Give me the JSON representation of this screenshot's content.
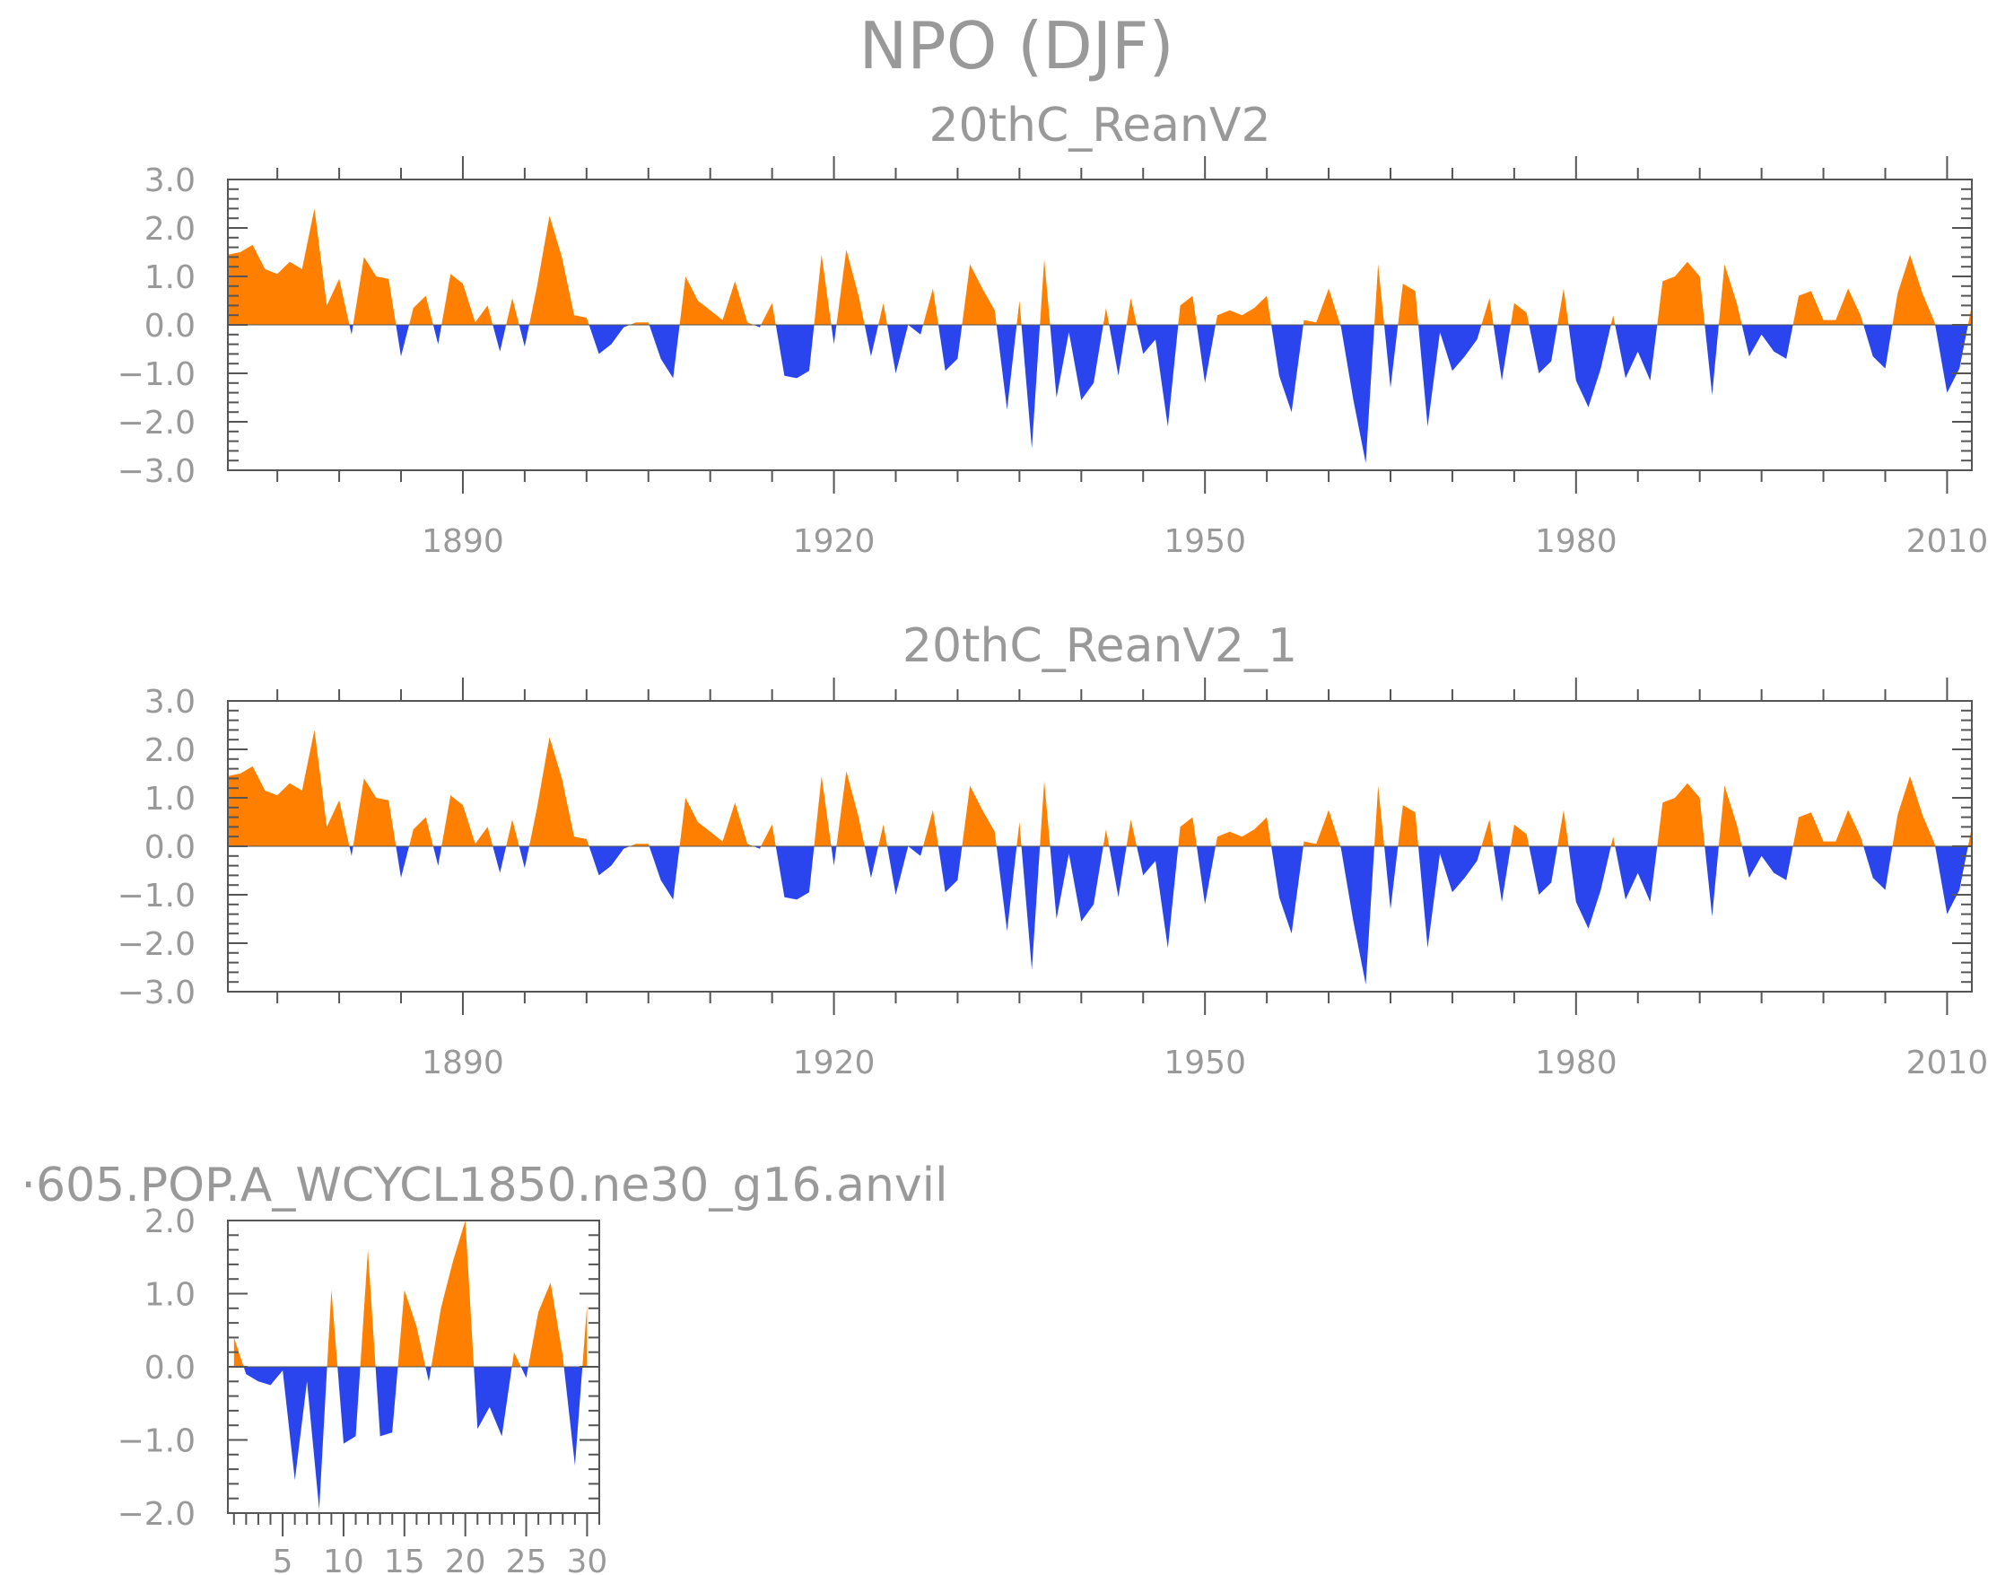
{
  "main_title": "NPO (DJF)",
  "colors": {
    "positive": "#ff8000",
    "negative": "#2a44ee",
    "text": "#999999",
    "axis": "#555555"
  },
  "chart_data": [
    {
      "type": "area",
      "title": "20thC_ReanV2",
      "xlim": [
        1871,
        2012
      ],
      "ylim": [
        -3.0,
        3.0
      ],
      "yticks": [
        3.0,
        2.0,
        1.0,
        0.0,
        -1.0,
        -2.0,
        -3.0
      ],
      "ytick_labels": [
        "3.0",
        "2.0",
        "1.0",
        "0.0",
        "−1.0",
        "−2.0",
        "−3.0"
      ],
      "xticks": [
        1890,
        1920,
        1950,
        1980,
        2010
      ],
      "xtick_labels": [
        "1890",
        "1920",
        "1950",
        "1980",
        "2010"
      ],
      "x_start": 1871,
      "values": [
        1.45,
        1.5,
        1.65,
        1.15,
        1.05,
        1.3,
        1.15,
        2.4,
        0.4,
        0.95,
        -0.2,
        1.4,
        1.0,
        0.95,
        -0.65,
        0.35,
        0.6,
        -0.4,
        1.05,
        0.85,
        0.05,
        0.4,
        -0.55,
        0.55,
        -0.45,
        0.8,
        2.25,
        1.4,
        0.2,
        0.15,
        -0.6,
        -0.4,
        -0.05,
        0.05,
        0.05,
        -0.7,
        -1.1,
        1.0,
        0.5,
        0.3,
        0.1,
        0.9,
        0.05,
        -0.05,
        0.45,
        -1.05,
        -1.1,
        -0.95,
        1.45,
        -0.4,
        1.55,
        0.6,
        -0.65,
        0.45,
        -1.0,
        0.0,
        -0.2,
        0.75,
        -0.95,
        -0.7,
        1.25,
        0.75,
        0.3,
        -1.75,
        0.5,
        -2.55,
        1.35,
        -1.5,
        -0.15,
        -1.55,
        -1.2,
        0.35,
        -1.05,
        0.55,
        -0.6,
        -0.3,
        -2.1,
        0.4,
        0.6,
        -1.2,
        0.2,
        0.3,
        0.2,
        0.35,
        0.6,
        -1.05,
        -1.8,
        0.1,
        0.05,
        0.75,
        -0.05,
        -1.55,
        -2.85,
        1.25,
        -1.3,
        0.85,
        0.7,
        -2.1,
        -0.15,
        -0.95,
        -0.65,
        -0.3,
        0.55,
        -1.15,
        0.45,
        0.25,
        -1.0,
        -0.75,
        0.75,
        -1.15,
        -1.7,
        -0.9,
        0.2,
        -1.1,
        -0.55,
        -1.15,
        0.9,
        1.0,
        1.3,
        1.0,
        -1.45,
        1.25,
        0.45,
        -0.65,
        -0.2,
        -0.55,
        -0.7,
        0.6,
        0.7,
        0.1,
        0.1,
        0.75,
        0.2,
        -0.65,
        -0.9,
        0.65,
        1.45,
        0.65,
        0.05,
        -1.4,
        -0.9,
        0.4
      ]
    },
    {
      "type": "area",
      "title": "20thC_ReanV2_1",
      "xlim": [
        1871,
        2012
      ],
      "ylim": [
        -3.0,
        3.0
      ],
      "yticks": [
        3.0,
        2.0,
        1.0,
        0.0,
        -1.0,
        -2.0,
        -3.0
      ],
      "ytick_labels": [
        "3.0",
        "2.0",
        "1.0",
        "0.0",
        "−1.0",
        "−2.0",
        "−3.0"
      ],
      "xticks": [
        1890,
        1920,
        1950,
        1980,
        2010
      ],
      "xtick_labels": [
        "1890",
        "1920",
        "1950",
        "1980",
        "2010"
      ],
      "x_start": 1871,
      "values": [
        1.45,
        1.5,
        1.65,
        1.15,
        1.05,
        1.3,
        1.15,
        2.4,
        0.4,
        0.95,
        -0.2,
        1.4,
        1.0,
        0.95,
        -0.65,
        0.35,
        0.6,
        -0.4,
        1.05,
        0.85,
        0.05,
        0.4,
        -0.55,
        0.55,
        -0.45,
        0.8,
        2.25,
        1.4,
        0.2,
        0.15,
        -0.6,
        -0.4,
        -0.05,
        0.05,
        0.05,
        -0.7,
        -1.1,
        1.0,
        0.5,
        0.3,
        0.1,
        0.9,
        0.05,
        -0.05,
        0.45,
        -1.05,
        -1.1,
        -0.95,
        1.45,
        -0.4,
        1.55,
        0.6,
        -0.65,
        0.45,
        -1.0,
        0.0,
        -0.2,
        0.75,
        -0.95,
        -0.7,
        1.25,
        0.75,
        0.3,
        -1.75,
        0.5,
        -2.55,
        1.35,
        -1.5,
        -0.15,
        -1.55,
        -1.2,
        0.35,
        -1.05,
        0.55,
        -0.6,
        -0.3,
        -2.1,
        0.4,
        0.6,
        -1.2,
        0.2,
        0.3,
        0.2,
        0.35,
        0.6,
        -1.05,
        -1.8,
        0.1,
        0.05,
        0.75,
        -0.05,
        -1.55,
        -2.85,
        1.25,
        -1.3,
        0.85,
        0.7,
        -2.1,
        -0.15,
        -0.95,
        -0.65,
        -0.3,
        0.55,
        -1.15,
        0.45,
        0.25,
        -1.0,
        -0.75,
        0.75,
        -1.15,
        -1.7,
        -0.9,
        0.2,
        -1.1,
        -0.55,
        -1.15,
        0.9,
        1.0,
        1.3,
        1.0,
        -1.45,
        1.25,
        0.45,
        -0.65,
        -0.2,
        -0.55,
        -0.7,
        0.6,
        0.7,
        0.1,
        0.1,
        0.75,
        0.2,
        -0.65,
        -0.9,
        0.65,
        1.45,
        0.65,
        0.05,
        -1.4,
        -0.9,
        0.4
      ]
    },
    {
      "type": "area",
      "title": "·605.POP.A_WCYCL1850.ne30_g16.anvil",
      "xlim": [
        0.5,
        31
      ],
      "ylim": [
        -2.0,
        2.0
      ],
      "yticks": [
        2.0,
        1.0,
        0.0,
        -1.0,
        -2.0
      ],
      "ytick_labels": [
        "2.0",
        "1.0",
        "0.0",
        "−1.0",
        "−2.0"
      ],
      "xticks": [
        5,
        10,
        15,
        20,
        25,
        30
      ],
      "xtick_labels": [
        "5",
        "10",
        "15",
        "20",
        "25",
        "30"
      ],
      "x_start": 1,
      "values": [
        0.4,
        -0.1,
        -0.2,
        -0.25,
        -0.05,
        -1.55,
        -0.2,
        -1.95,
        1.05,
        -1.05,
        -0.95,
        1.6,
        -0.95,
        -0.9,
        1.05,
        0.55,
        -0.2,
        0.8,
        1.45,
        2.0,
        -0.85,
        -0.55,
        -0.95,
        0.2,
        -0.15,
        0.75,
        1.15,
        0.15,
        -1.35,
        0.85
      ]
    }
  ]
}
